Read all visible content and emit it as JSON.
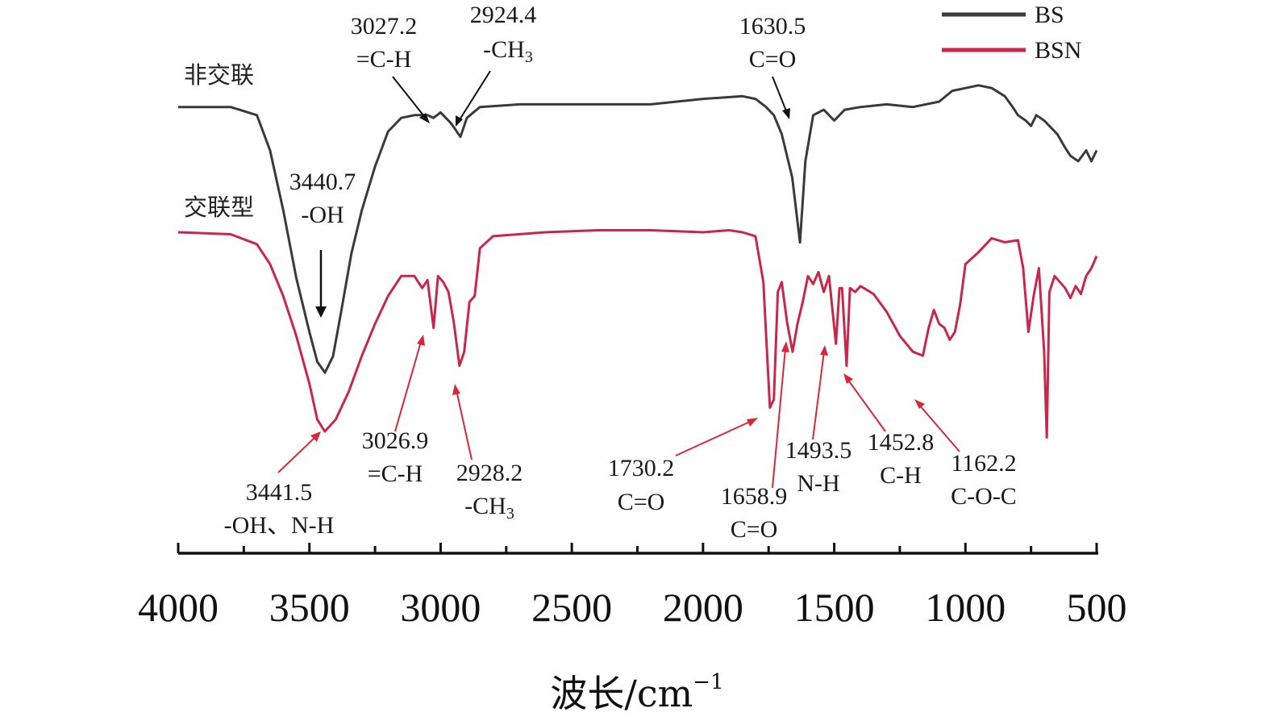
{
  "chart_data": {
    "type": "line",
    "title": "",
    "xlabel": "波长/cm",
    "xlabel_sup": "−1",
    "ylabel": "",
    "xlim": [
      4000,
      500
    ],
    "x_ticks": [
      "4000",
      "3500",
      "3000",
      "2500",
      "2000",
      "1500",
      "1000",
      "500"
    ],
    "legend": {
      "position": "top-right",
      "entries": [
        "BS",
        "BSN"
      ]
    },
    "series_labels": {
      "non_crosslinked": "非交联",
      "crosslinked": "交联型"
    },
    "colors": {
      "BS": "#3a3a3a",
      "BSN": "#c8264a",
      "BS_arrow": "#111111",
      "BSN_arrow": "#d8263a"
    },
    "series": [
      {
        "name": "BS",
        "points": [
          [
            4000,
            0.02
          ],
          [
            3800,
            0.02
          ],
          [
            3700,
            0.05
          ],
          [
            3650,
            0.18
          ],
          [
            3600,
            0.4
          ],
          [
            3550,
            0.65
          ],
          [
            3500,
            0.85
          ],
          [
            3470,
            0.96
          ],
          [
            3440.7,
            1.0
          ],
          [
            3410,
            0.94
          ],
          [
            3380,
            0.78
          ],
          [
            3340,
            0.56
          ],
          [
            3300,
            0.4
          ],
          [
            3250,
            0.24
          ],
          [
            3200,
            0.11
          ],
          [
            3150,
            0.06
          ],
          [
            3100,
            0.05
          ],
          [
            3050,
            0.05
          ],
          [
            3027.2,
            0.06
          ],
          [
            3000,
            0.04
          ],
          [
            2960,
            0.08
          ],
          [
            2924.4,
            0.13
          ],
          [
            2900,
            0.06
          ],
          [
            2850,
            0.02
          ],
          [
            2700,
            0.01
          ],
          [
            2500,
            0.01
          ],
          [
            2200,
            0.01
          ],
          [
            2000,
            -0.01
          ],
          [
            1850,
            -0.02
          ],
          [
            1800,
            -0.01
          ],
          [
            1760,
            0.02
          ],
          [
            1730,
            0.05
          ],
          [
            1700,
            0.12
          ],
          [
            1660,
            0.28
          ],
          [
            1630.5,
            0.52
          ],
          [
            1610,
            0.22
          ],
          [
            1580,
            0.05
          ],
          [
            1540,
            0.03
          ],
          [
            1500,
            0.07
          ],
          [
            1460,
            0.03
          ],
          [
            1400,
            0.02
          ],
          [
            1300,
            0.01
          ],
          [
            1200,
            0.02
          ],
          [
            1100,
            0.0
          ],
          [
            1050,
            -0.04
          ],
          [
            950,
            -0.06
          ],
          [
            900,
            -0.05
          ],
          [
            850,
            -0.02
          ],
          [
            820,
            0.02
          ],
          [
            800,
            0.05
          ],
          [
            770,
            0.07
          ],
          [
            750,
            0.09
          ],
          [
            730,
            0.05
          ],
          [
            700,
            0.07
          ],
          [
            650,
            0.12
          ],
          [
            620,
            0.17
          ],
          [
            600,
            0.2
          ],
          [
            570,
            0.22
          ],
          [
            540,
            0.18
          ],
          [
            520,
            0.22
          ],
          [
            500,
            0.18
          ]
        ]
      },
      {
        "name": "BSN",
        "points": [
          [
            4000,
            0.0
          ],
          [
            3800,
            0.01
          ],
          [
            3700,
            0.06
          ],
          [
            3650,
            0.16
          ],
          [
            3600,
            0.32
          ],
          [
            3550,
            0.52
          ],
          [
            3500,
            0.76
          ],
          [
            3470,
            0.94
          ],
          [
            3441.5,
            1.0
          ],
          [
            3400,
            0.94
          ],
          [
            3350,
            0.8
          ],
          [
            3300,
            0.62
          ],
          [
            3250,
            0.46
          ],
          [
            3200,
            0.32
          ],
          [
            3150,
            0.22
          ],
          [
            3100,
            0.22
          ],
          [
            3070,
            0.28
          ],
          [
            3050,
            0.24
          ],
          [
            3026.9,
            0.48
          ],
          [
            3010,
            0.22
          ],
          [
            2990,
            0.25
          ],
          [
            2970,
            0.3
          ],
          [
            2950,
            0.45
          ],
          [
            2928.2,
            0.67
          ],
          [
            2910,
            0.6
          ],
          [
            2890,
            0.35
          ],
          [
            2870,
            0.32
          ],
          [
            2850,
            0.08
          ],
          [
            2800,
            0.02
          ],
          [
            2600,
            0.0
          ],
          [
            2400,
            -0.01
          ],
          [
            2200,
            -0.01
          ],
          [
            2000,
            0.0
          ],
          [
            1900,
            -0.01
          ],
          [
            1850,
            0.0
          ],
          [
            1800,
            0.02
          ],
          [
            1770,
            0.25
          ],
          [
            1745,
            0.88
          ],
          [
            1730.2,
            0.84
          ],
          [
            1715,
            0.3
          ],
          [
            1700,
            0.25
          ],
          [
            1680,
            0.45
          ],
          [
            1658.9,
            0.6
          ],
          [
            1640,
            0.46
          ],
          [
            1620,
            0.35
          ],
          [
            1600,
            0.22
          ],
          [
            1580,
            0.26
          ],
          [
            1560,
            0.2
          ],
          [
            1540,
            0.3
          ],
          [
            1520,
            0.22
          ],
          [
            1493.5,
            0.56
          ],
          [
            1480,
            0.28
          ],
          [
            1470,
            0.28
          ],
          [
            1452.8,
            0.67
          ],
          [
            1440,
            0.28
          ],
          [
            1420,
            0.3
          ],
          [
            1400,
            0.27
          ],
          [
            1350,
            0.31
          ],
          [
            1300,
            0.4
          ],
          [
            1250,
            0.52
          ],
          [
            1200,
            0.6
          ],
          [
            1162.2,
            0.62
          ],
          [
            1140,
            0.48
          ],
          [
            1120,
            0.39
          ],
          [
            1100,
            0.46
          ],
          [
            1080,
            0.48
          ],
          [
            1060,
            0.54
          ],
          [
            1040,
            0.5
          ],
          [
            1020,
            0.36
          ],
          [
            1000,
            0.16
          ],
          [
            950,
            0.1
          ],
          [
            900,
            0.03
          ],
          [
            850,
            0.05
          ],
          [
            800,
            0.04
          ],
          [
            780,
            0.18
          ],
          [
            760,
            0.5
          ],
          [
            740,
            0.32
          ],
          [
            720,
            0.18
          ],
          [
            700,
            0.6
          ],
          [
            690,
            1.03
          ],
          [
            680,
            0.3
          ],
          [
            660,
            0.22
          ],
          [
            620,
            0.28
          ],
          [
            600,
            0.33
          ],
          [
            580,
            0.27
          ],
          [
            560,
            0.31
          ],
          [
            540,
            0.22
          ],
          [
            520,
            0.18
          ],
          [
            500,
            0.12
          ]
        ]
      }
    ],
    "annotations_top": [
      {
        "id": "bs-3027",
        "value": "3027.2",
        "group": "=C-H"
      },
      {
        "id": "bs-2924",
        "value": "2924.4",
        "group": "-CH",
        "sub": "3"
      },
      {
        "id": "bs-1630",
        "value": "1630.5",
        "group": "C=O"
      },
      {
        "id": "bs-3440",
        "value": "3440.7",
        "group": "-OH"
      }
    ],
    "annotations_bottom": [
      {
        "id": "bsn-3441",
        "value": "3441.5",
        "group": "-OH、N-H"
      },
      {
        "id": "bsn-3026",
        "value": "3026.9",
        "group": "=C-H"
      },
      {
        "id": "bsn-2928",
        "value": "2928.2",
        "group": "-CH",
        "sub": "3"
      },
      {
        "id": "bsn-1730",
        "value": "1730.2",
        "group": "C=O"
      },
      {
        "id": "bsn-1658",
        "value": "1658.9",
        "group": "C=O"
      },
      {
        "id": "bsn-1493",
        "value": "1493.5",
        "group": "N-H"
      },
      {
        "id": "bsn-1452",
        "value": "1452.8",
        "group": "C-H"
      },
      {
        "id": "bsn-1162",
        "value": "1162.2",
        "group": "C-O-C"
      }
    ]
  }
}
